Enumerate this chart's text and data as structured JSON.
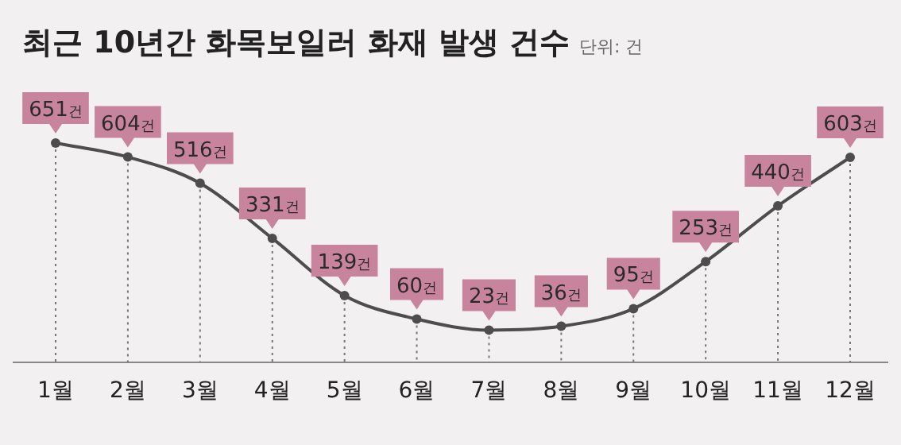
{
  "chart_data": {
    "type": "line",
    "title": "최근 10년간 화목보일러 화재 발생 건수",
    "annotations": [
      "단위: 건"
    ],
    "categories": [
      "1월",
      "2월",
      "3월",
      "4월",
      "5월",
      "6월",
      "7월",
      "8월",
      "9월",
      "10월",
      "11월",
      "12월"
    ],
    "values": [
      651,
      604,
      516,
      331,
      139,
      60,
      23,
      36,
      95,
      253,
      440,
      603
    ],
    "value_labels": [
      "651건",
      "604건",
      "516건",
      "331건",
      "139건",
      "60건",
      "23건",
      "36건",
      "95건",
      "253건",
      "440건",
      "603건"
    ],
    "color": "#4d4d4d",
    "marker": "circle",
    "grid": "x"
  }
}
